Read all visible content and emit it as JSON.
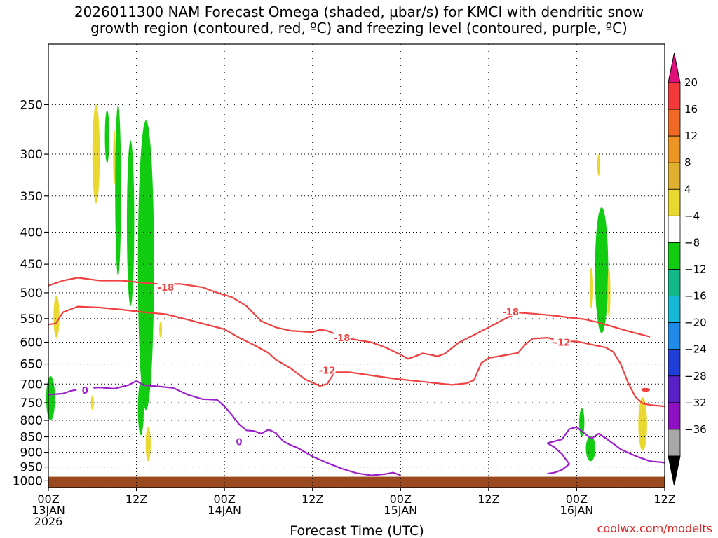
{
  "title_line1": "2026011300 NAM Forecast Omega (shaded, µbar/s) for KMCI with dendritic snow",
  "title_line2": "growth region (contoured, red, ºC) and freezing level (contoured, purple, ºC)",
  "xlabel": "Forecast Time (UTC)",
  "credit": "coolwx.com/modelts",
  "chart_data": {
    "type": "heatmap",
    "x_hours_range": [
      0,
      84
    ],
    "y_pressure_range_hPa": [
      1025,
      200
    ],
    "y_ticks": [
      250,
      300,
      350,
      400,
      450,
      500,
      550,
      600,
      650,
      700,
      750,
      800,
      850,
      900,
      950,
      1000
    ],
    "x_ticks": [
      {
        "h": 0,
        "line1": "00Z",
        "line2": "13JAN",
        "line3": "2026"
      },
      {
        "h": 12,
        "line1": "12Z",
        "line2": "",
        "line3": ""
      },
      {
        "h": 24,
        "line1": "00Z",
        "line2": "14JAN",
        "line3": ""
      },
      {
        "h": 36,
        "line1": "12Z",
        "line2": "",
        "line3": ""
      },
      {
        "h": 48,
        "line1": "00Z",
        "line2": "15JAN",
        "line3": ""
      },
      {
        "h": 60,
        "line1": "12Z",
        "line2": "",
        "line3": ""
      },
      {
        "h": 72,
        "line1": "00Z",
        "line2": "16JAN",
        "line3": ""
      },
      {
        "h": 84,
        "line1": "12Z",
        "line2": "",
        "line3": ""
      }
    ],
    "grid": "dotted",
    "colorbar": {
      "labels": [
        "20",
        "16",
        "12",
        "8",
        "4",
        "−4",
        "−8",
        "−12",
        "−16",
        "−20",
        "−24",
        "−28",
        "−32",
        "−36"
      ],
      "top_arrow_color": "#e0107a",
      "bottom_arrow_color": "#000000",
      "colors": [
        "#f23a3a",
        "#f06a25",
        "#ec9525",
        "#e0b030",
        "#e8d830",
        "#ffffff",
        "#12cc12",
        "#13b888",
        "#16b8d8",
        "#1f8ae8",
        "#1f3fd8",
        "#5a20c8",
        "#8f10c0",
        "#a8a8a8"
      ]
    },
    "contours": [
      {
        "name": "-18",
        "color": "#f04040",
        "points": [
          [
            0,
            487
          ],
          [
            2,
            478
          ],
          [
            4,
            473
          ],
          [
            7,
            478
          ],
          [
            10,
            478
          ],
          [
            13,
            482
          ],
          [
            15,
            484
          ],
          [
            18,
            484
          ],
          [
            21,
            490
          ],
          [
            23,
            500
          ],
          [
            25,
            508
          ],
          [
            27,
            525
          ],
          [
            29,
            555
          ],
          [
            31,
            568
          ],
          [
            33,
            575
          ],
          [
            36,
            578
          ],
          [
            37,
            573
          ],
          [
            38,
            575
          ],
          [
            40,
            588
          ],
          [
            42,
            595
          ],
          [
            44,
            600
          ],
          [
            46,
            612
          ],
          [
            47,
            620
          ],
          [
            48,
            628
          ],
          [
            49,
            638
          ],
          [
            50,
            632
          ],
          [
            51,
            625
          ],
          [
            52,
            628
          ],
          [
            53,
            632
          ],
          [
            54,
            626
          ],
          [
            56,
            600
          ],
          [
            58,
            584
          ],
          [
            60,
            568
          ],
          [
            61,
            560
          ],
          [
            62,
            552
          ],
          [
            64,
            538
          ],
          [
            66,
            540
          ],
          [
            69,
            544
          ],
          [
            71,
            548
          ],
          [
            73,
            551
          ],
          [
            75,
            558
          ],
          [
            77,
            567
          ],
          [
            79,
            576
          ],
          [
            81,
            584
          ],
          [
            82,
            588
          ]
        ]
      },
      {
        "name": "-12",
        "color": "#f04040",
        "points": [
          [
            0,
            562
          ],
          [
            1,
            560
          ],
          [
            2,
            537
          ],
          [
            4,
            526
          ],
          [
            7,
            528
          ],
          [
            10,
            532
          ],
          [
            13,
            537
          ],
          [
            16,
            541
          ],
          [
            19,
            552
          ],
          [
            22,
            564
          ],
          [
            24,
            572
          ],
          [
            26,
            590
          ],
          [
            28,
            606
          ],
          [
            30,
            624
          ],
          [
            31,
            640
          ],
          [
            33,
            660
          ],
          [
            35,
            688
          ],
          [
            37,
            705
          ],
          [
            38,
            700
          ],
          [
            39,
            670
          ],
          [
            41,
            670
          ],
          [
            44,
            678
          ],
          [
            47,
            686
          ],
          [
            50,
            692
          ],
          [
            53,
            698
          ],
          [
            55,
            702
          ],
          [
            57,
            698
          ],
          [
            58,
            690
          ],
          [
            59,
            648
          ],
          [
            60,
            636
          ],
          [
            62,
            630
          ],
          [
            64,
            624
          ],
          [
            65,
            605
          ],
          [
            66,
            592
          ],
          [
            68,
            590
          ],
          [
            70,
            598
          ],
          [
            72,
            598
          ],
          [
            74,
            605
          ],
          [
            76,
            612
          ],
          [
            77,
            622
          ],
          [
            78,
            650
          ],
          [
            79,
            696
          ],
          [
            80,
            734
          ],
          [
            81,
            752
          ],
          [
            82,
            756
          ],
          [
            83,
            758
          ],
          [
            84,
            760
          ]
        ]
      },
      {
        "name": "0",
        "color": "#9d1fcc",
        "points": [
          [
            0,
            728
          ],
          [
            2,
            725
          ],
          [
            3,
            718
          ],
          [
            5,
            711
          ],
          [
            7,
            709
          ],
          [
            9,
            712
          ],
          [
            11,
            702
          ],
          [
            12,
            692
          ],
          [
            13,
            703
          ],
          [
            15,
            706
          ],
          [
            17,
            710
          ],
          [
            19,
            728
          ],
          [
            21,
            740
          ],
          [
            23,
            742
          ],
          [
            24,
            760
          ],
          [
            25,
            784
          ],
          [
            26,
            812
          ],
          [
            27,
            830
          ],
          [
            28,
            832
          ],
          [
            29,
            840
          ],
          [
            30,
            828
          ],
          [
            31,
            838
          ],
          [
            32,
            864
          ],
          [
            33,
            876
          ],
          [
            34,
            886
          ],
          [
            36,
            914
          ],
          [
            38,
            936
          ],
          [
            40,
            956
          ],
          [
            42,
            972
          ],
          [
            44,
            980
          ],
          [
            46,
            975
          ],
          [
            47,
            970
          ],
          [
            48,
            980
          ]
        ]
      },
      {
        "name": "0-right",
        "color": "#9d1fcc",
        "points": [
          [
            68,
            870
          ],
          [
            70,
            858
          ],
          [
            71,
            826
          ],
          [
            72,
            820
          ],
          [
            73,
            838
          ],
          [
            74,
            856
          ],
          [
            75,
            840
          ],
          [
            76,
            855
          ],
          [
            77,
            872
          ],
          [
            78,
            890
          ],
          [
            80,
            912
          ],
          [
            82,
            930
          ],
          [
            84,
            935
          ]
        ]
      },
      {
        "name": "0-rightlow",
        "color": "#9d1fcc",
        "points": [
          [
            68,
            870
          ],
          [
            69,
            884
          ],
          [
            70,
            906
          ],
          [
            71,
            940
          ],
          [
            70,
            960
          ],
          [
            69,
            970
          ],
          [
            68,
            974
          ]
        ]
      }
    ],
    "contour_labels": [
      {
        "text": "-18",
        "h": 16,
        "p": 490,
        "color": "#f04040"
      },
      {
        "text": "-18",
        "h": 40,
        "p": 590,
        "color": "#f04040"
      },
      {
        "text": "-18",
        "h": 63,
        "p": 536,
        "color": "#f04040"
      },
      {
        "text": "-12",
        "h": 38,
        "p": 665,
        "color": "#f04040"
      },
      {
        "text": "-12",
        "h": 70,
        "p": 600,
        "color": "#f04040"
      },
      {
        "text": "0",
        "h": 5,
        "p": 716,
        "color": "#9d1fcc"
      },
      {
        "text": "0",
        "h": 26,
        "p": 865,
        "color": "#9d1fcc"
      }
    ],
    "shaded_regions": [
      {
        "color": "#12cc12",
        "h": 0.3,
        "hw": 0.6,
        "p_top": 680,
        "p_bot": 800
      },
      {
        "color": "#e8d830",
        "h": 1.1,
        "hw": 0.4,
        "p_top": 505,
        "p_bot": 590
      },
      {
        "color": "#e8d830",
        "h": 6.5,
        "hw": 0.5,
        "p_top": 250,
        "p_bot": 360
      },
      {
        "color": "#12cc12",
        "h": 8.0,
        "hw": 0.3,
        "p_top": 255,
        "p_bot": 310
      },
      {
        "color": "#e8d830",
        "h": 9.0,
        "hw": 0.15,
        "p_top": 275,
        "p_bot": 335
      },
      {
        "color": "#12cc12",
        "h": 9.5,
        "hw": 0.4,
        "p_top": 250,
        "p_bot": 470
      },
      {
        "color": "#12cc12",
        "h": 11.2,
        "hw": 0.5,
        "p_top": 285,
        "p_bot": 525
      },
      {
        "color": "#12cc12",
        "h": 12.6,
        "hw": 0.4,
        "p_top": 695,
        "p_bot": 845
      },
      {
        "color": "#12cc12",
        "h": 13.3,
        "hw": 1.1,
        "p_top": 265,
        "p_bot": 770
      },
      {
        "color": "#e8d830",
        "h": 13.6,
        "hw": 0.35,
        "p_top": 820,
        "p_bot": 930
      },
      {
        "color": "#e8d830",
        "h": 6.0,
        "hw": 0.12,
        "p_top": 730,
        "p_bot": 770
      },
      {
        "color": "#e8d830",
        "h": 15.3,
        "hw": 0.12,
        "p_top": 555,
        "p_bot": 590
      },
      {
        "color": "#e8d830",
        "h": 75.0,
        "hw": 0.1,
        "p_top": 300,
        "p_bot": 325
      },
      {
        "color": "#12cc12",
        "h": 72.7,
        "hw": 0.35,
        "p_top": 765,
        "p_bot": 850
      },
      {
        "color": "#12cc12",
        "h": 73.9,
        "hw": 0.65,
        "p_top": 848,
        "p_bot": 930
      },
      {
        "color": "#e8d830",
        "h": 74.0,
        "hw": 0.25,
        "p_top": 455,
        "p_bot": 530
      },
      {
        "color": "#12cc12",
        "h": 75.4,
        "hw": 0.9,
        "p_top": 365,
        "p_bot": 580
      },
      {
        "color": "#e8d830",
        "h": 76.4,
        "hw": 0.2,
        "p_top": 455,
        "p_bot": 550
      },
      {
        "color": "#e8d830",
        "h": 81.0,
        "hw": 0.6,
        "p_top": 735,
        "p_bot": 895
      },
      {
        "color": "#f04040",
        "h": 81.4,
        "hw": 0.6,
        "p_top": 710,
        "p_bot": 720
      }
    ],
    "ground": {
      "color": "#9b4a1f",
      "p_top": 985
    }
  }
}
